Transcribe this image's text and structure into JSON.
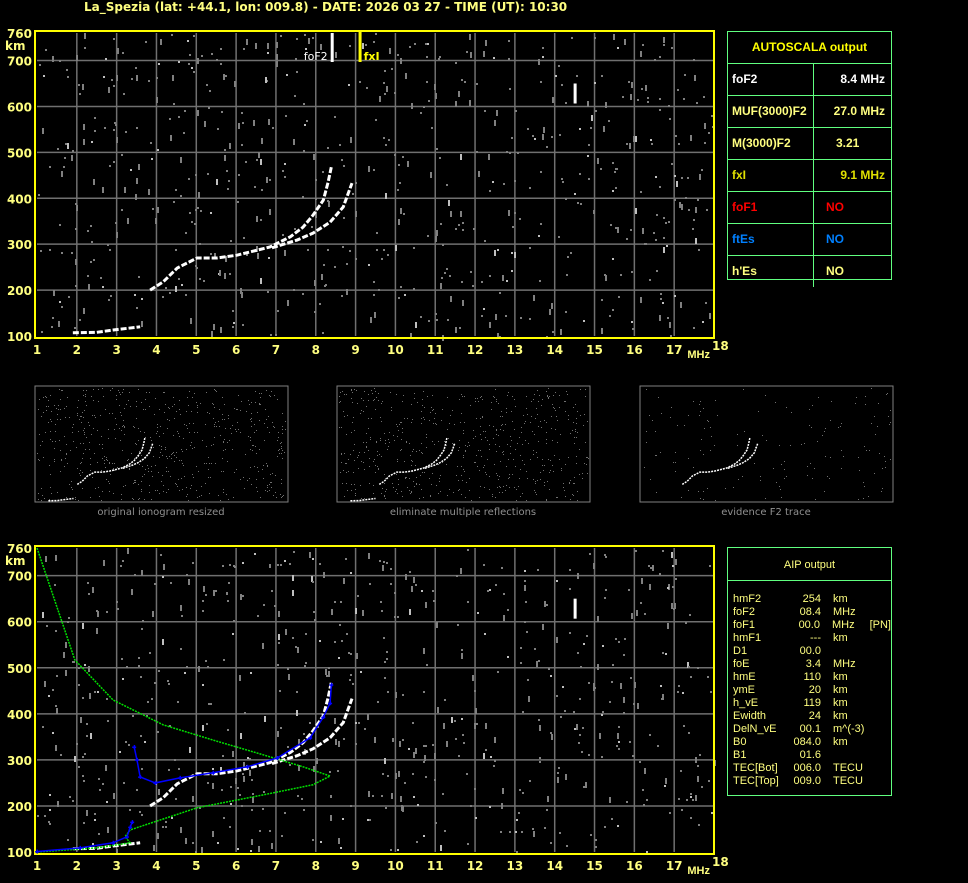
{
  "header": {
    "title": "La_Spezia (lat: +44.1, lon: 009.8) - DATE: 2026 03 27 - TIME (UT): 10:30"
  },
  "axes": {
    "y_ticks": [
      "760",
      "700",
      "600",
      "500",
      "400",
      "300",
      "200",
      "100"
    ],
    "y_unit": "km",
    "x_ticks": [
      "1",
      "2",
      "3",
      "4",
      "5",
      "6",
      "7",
      "8",
      "9",
      "10",
      "11",
      "12",
      "13",
      "14",
      "15",
      "16",
      "17",
      "18"
    ],
    "x_unit": "MHz"
  },
  "markers": {
    "fof2_label": "foF2",
    "fxi_label": "fxI"
  },
  "autoscala": {
    "title": "AUTOSCALA output",
    "rows": [
      {
        "key": "foF2",
        "value": "8.4 MHz",
        "color": "#ffffff"
      },
      {
        "key": "MUF(3000)F2",
        "value": "27.0 MHz",
        "color": "#ffff80"
      },
      {
        "key": "M(3000)F2",
        "value": "3.21",
        "color": "#ffff80"
      },
      {
        "key": "fxI",
        "value": "9.1 MHz",
        "color": "#e0e000"
      },
      {
        "key": "foF1",
        "value": "NO",
        "color": "#ff0000"
      },
      {
        "key": "ftEs",
        "value": "NO",
        "color": "#0080ff"
      },
      {
        "key": "h'Es",
        "value": "NO",
        "color": "#ffff80"
      }
    ]
  },
  "thumbnails": [
    {
      "caption": "original ionogram resized"
    },
    {
      "caption": "eliminate multiple reflections"
    },
    {
      "caption": "evidence F2 trace"
    }
  ],
  "aip": {
    "title": "AIP output",
    "rows": [
      [
        "hmF2",
        "254",
        "km",
        ""
      ],
      [
        "foF2",
        "08.4",
        "MHz",
        ""
      ],
      [
        "foF1",
        "00.0",
        "MHz",
        "[PN]"
      ],
      [
        "hmF1",
        "---",
        "km",
        ""
      ],
      [
        "D1",
        "00.0",
        "",
        ""
      ],
      [
        "foE",
        "3.4",
        "MHz",
        ""
      ],
      [
        "hmE",
        "110",
        "km",
        ""
      ],
      [
        "ymE",
        "20",
        "km",
        ""
      ],
      [
        "h_vE",
        "119",
        "km",
        ""
      ],
      [
        "Ewidth",
        "24",
        "km",
        ""
      ],
      [
        "DelN_vE",
        "00.1",
        "m^(-3)",
        ""
      ],
      [
        "B0",
        "084.0",
        "km",
        ""
      ],
      [
        "B1",
        "01.6",
        "",
        ""
      ],
      [
        "TEC[Bot]",
        "006.0",
        "TECU",
        ""
      ],
      [
        "TEC[Top]",
        "009.0",
        "TECU",
        ""
      ]
    ]
  },
  "colors": {
    "axis": "#ffff00",
    "grid": "#707070",
    "trace": "#ffffff",
    "profile": "#00e000",
    "fitted_trace": "#0000ff",
    "table_border": "#60ff80"
  },
  "chart_data": [
    {
      "type": "scatter",
      "name_in_ui": "ionogram with autoscala",
      "xlim": [
        1,
        18
      ],
      "ylim": [
        100,
        760
      ],
      "grid": true,
      "foF2": 8.4,
      "fxI": 9.1,
      "series": [
        {
          "name": "",
          "role": "o-trace",
          "points": [
            [
              3.84,
              200
            ],
            [
              4.17,
              218
            ],
            [
              4.52,
              248
            ],
            [
              5.02,
              270
            ],
            [
              5.52,
              270
            ],
            [
              6.02,
              276
            ],
            [
              6.53,
              287
            ],
            [
              6.85,
              294
            ],
            [
              7.36,
              316
            ],
            [
              7.68,
              337
            ],
            [
              7.93,
              363
            ],
            [
              8.19,
              396
            ],
            [
              8.31,
              435
            ],
            [
              8.39,
              468
            ]
          ]
        },
        {
          "name": "",
          "role": "x-trace",
          "points": [
            [
              6.9,
              292
            ],
            [
              7.53,
              309
            ],
            [
              7.93,
              324
            ],
            [
              8.36,
              348
            ],
            [
              8.69,
              381
            ],
            [
              8.91,
              433
            ]
          ]
        },
        {
          "name": "",
          "role": "e-trace",
          "points": [
            [
              1.9,
              107
            ],
            [
              2.5,
              108
            ],
            [
              2.91,
              113
            ],
            [
              3.3,
              117
            ],
            [
              3.59,
              120
            ]
          ]
        }
      ]
    },
    {
      "type": "line",
      "name_in_ui": "ionogram with AIP",
      "xlim": [
        1,
        18
      ],
      "ylim": [
        100,
        760
      ],
      "grid": true,
      "series": [
        {
          "name": "",
          "role": "electron-density-profile",
          "color": "#00e000",
          "points": [
            [
              1,
              760
            ],
            [
              1.95,
              517
            ],
            [
              2.91,
              430
            ],
            [
              4.17,
              376
            ],
            [
              5.42,
              343
            ],
            [
              6.68,
              311
            ],
            [
              7.68,
              285
            ],
            [
              8.36,
              265
            ],
            [
              7.93,
              246
            ],
            [
              6.68,
              224
            ],
            [
              5.02,
              196
            ],
            [
              3.34,
              148
            ],
            [
              3.21,
              133
            ],
            [
              3.34,
              120
            ],
            [
              2.51,
              109
            ],
            [
              1,
              100
            ]
          ]
        },
        {
          "name": "",
          "role": "fitted-f-trace",
          "color": "#0000ff",
          "points": [
            [
              3.44,
              328
            ],
            [
              3.51,
              300
            ],
            [
              3.59,
              263
            ],
            [
              3.97,
              250
            ],
            [
              4.59,
              261
            ],
            [
              5.42,
              272
            ],
            [
              6.28,
              285
            ],
            [
              7.03,
              304
            ],
            [
              7.86,
              348
            ],
            [
              8.19,
              393
            ],
            [
              8.36,
              423
            ],
            [
              8.39,
              463
            ]
          ]
        },
        {
          "name": "",
          "role": "fitted-e-trace",
          "color": "#0000ff",
          "points": [
            [
              1,
              101
            ],
            [
              2.08,
              109
            ],
            [
              2.91,
              120
            ],
            [
              3.26,
              133
            ],
            [
              3.34,
              154
            ],
            [
              3.39,
              165
            ]
          ]
        }
      ]
    }
  ]
}
